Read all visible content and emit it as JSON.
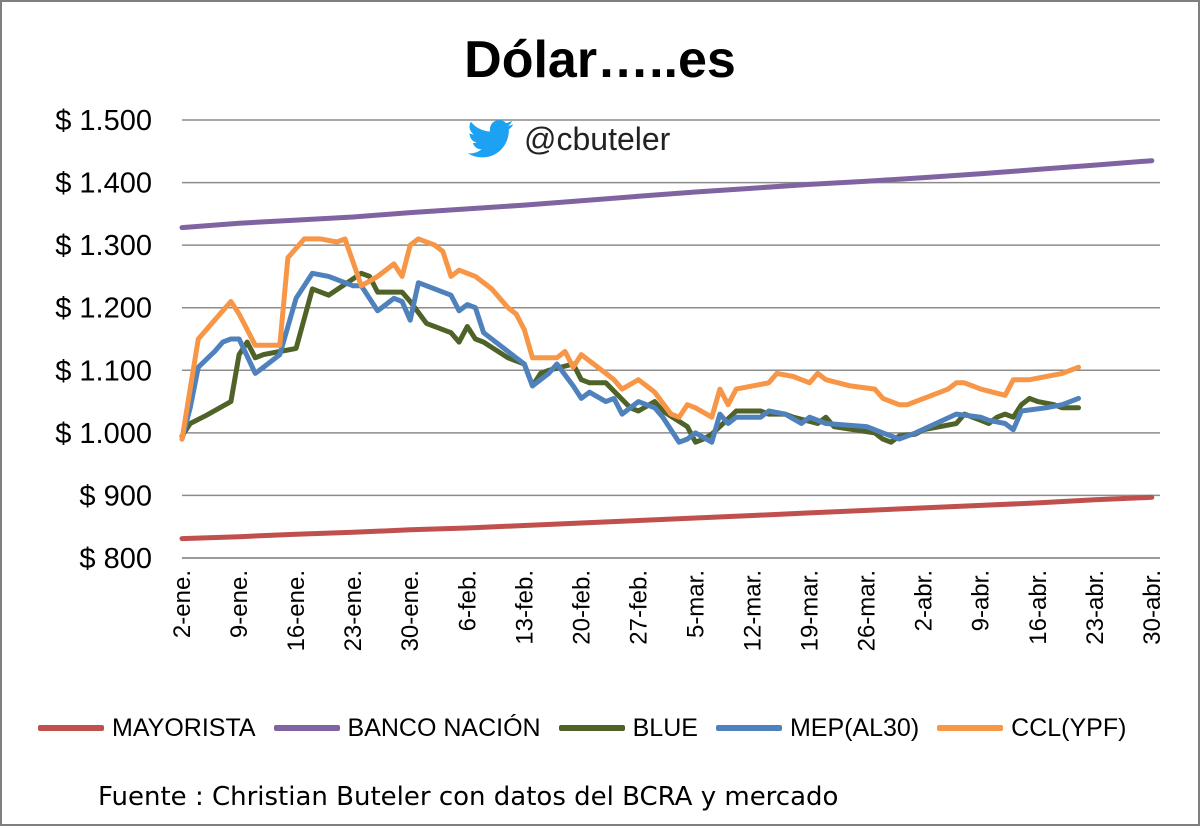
{
  "title": "Dólar…..es",
  "twitter": {
    "handle": "@cbuteler",
    "icon": "twitter-bird-icon",
    "icon_color": "#1da1f2"
  },
  "source_note": "Fuente : Christian Buteler con datos del BCRA y mercado",
  "chart_data": {
    "type": "line",
    "title": "Dólar…..es",
    "xlabel": "",
    "ylabel": "",
    "ylim": [
      800,
      1500
    ],
    "y_ticks": [
      800,
      900,
      1000,
      1100,
      1200,
      1300,
      1400,
      1500
    ],
    "y_tick_labels": [
      "$ 800",
      "$ 900",
      "$ 1.000",
      "$ 1.100",
      "$ 1.200",
      "$ 1.300",
      "$ 1.400",
      "$ 1.500"
    ],
    "x_tick_labels": [
      "2-ene.",
      "9-ene.",
      "16-ene.",
      "23-ene.",
      "30-ene.",
      "6-feb.",
      "13-feb.",
      "20-feb.",
      "27-feb.",
      "5-mar.",
      "12-mar.",
      "19-mar.",
      "26-mar.",
      "2-abr.",
      "9-abr.",
      "16-abr.",
      "23-abr.",
      "30-abr."
    ],
    "x_range_days": [
      0,
      120
    ],
    "grid": true,
    "legend_position": "bottom",
    "series": [
      {
        "name": "MAYORISTA",
        "color": "#c0504d",
        "points": [
          [
            0,
            831
          ],
          [
            7,
            834
          ],
          [
            14,
            838
          ],
          [
            21,
            841
          ],
          [
            28,
            845
          ],
          [
            35,
            848
          ],
          [
            42,
            852
          ],
          [
            49,
            856
          ],
          [
            56,
            860
          ],
          [
            63,
            864
          ],
          [
            70,
            868
          ],
          [
            77,
            872
          ],
          [
            84,
            876
          ],
          [
            91,
            880
          ],
          [
            98,
            884
          ],
          [
            105,
            888
          ],
          [
            112,
            893
          ],
          [
            119,
            897
          ]
        ]
      },
      {
        "name": "BANCO NACIÓN",
        "color": "#8064a2",
        "points": [
          [
            0,
            1328
          ],
          [
            7,
            1335
          ],
          [
            14,
            1340
          ],
          [
            21,
            1345
          ],
          [
            28,
            1352
          ],
          [
            35,
            1358
          ],
          [
            42,
            1364
          ],
          [
            49,
            1371
          ],
          [
            56,
            1378
          ],
          [
            63,
            1385
          ],
          [
            70,
            1391
          ],
          [
            77,
            1397
          ],
          [
            84,
            1402
          ],
          [
            91,
            1408
          ],
          [
            98,
            1414
          ],
          [
            105,
            1421
          ],
          [
            112,
            1428
          ],
          [
            119,
            1435
          ]
        ]
      },
      {
        "name": "BLUE",
        "color": "#4f6228",
        "points": [
          [
            0,
            995
          ],
          [
            1,
            1015
          ],
          [
            3,
            1028
          ],
          [
            6,
            1050
          ],
          [
            7,
            1125
          ],
          [
            8,
            1145
          ],
          [
            9,
            1120
          ],
          [
            10,
            1125
          ],
          [
            12,
            1130
          ],
          [
            14,
            1135
          ],
          [
            16,
            1230
          ],
          [
            18,
            1220
          ],
          [
            22,
            1255
          ],
          [
            23,
            1250
          ],
          [
            24,
            1225
          ],
          [
            27,
            1225
          ],
          [
            28,
            1210
          ],
          [
            30,
            1175
          ],
          [
            33,
            1160
          ],
          [
            34,
            1145
          ],
          [
            35,
            1170
          ],
          [
            36,
            1150
          ],
          [
            37,
            1145
          ],
          [
            40,
            1120
          ],
          [
            42,
            1110
          ],
          [
            43,
            1075
          ],
          [
            44,
            1095
          ],
          [
            45,
            1100
          ],
          [
            48,
            1110
          ],
          [
            49,
            1085
          ],
          [
            50,
            1080
          ],
          [
            52,
            1080
          ],
          [
            55,
            1040
          ],
          [
            56,
            1035
          ],
          [
            58,
            1050
          ],
          [
            59,
            1035
          ],
          [
            62,
            1010
          ],
          [
            63,
            985
          ],
          [
            64,
            990
          ],
          [
            65,
            998
          ],
          [
            66,
            1010
          ],
          [
            68,
            1035
          ],
          [
            71,
            1035
          ],
          [
            72,
            1030
          ],
          [
            74,
            1030
          ],
          [
            75,
            1025
          ],
          [
            78,
            1015
          ],
          [
            79,
            1025
          ],
          [
            80,
            1010
          ],
          [
            85,
            1000
          ],
          [
            86,
            990
          ],
          [
            87,
            985
          ],
          [
            88,
            995
          ],
          [
            90,
            998
          ],
          [
            91,
            1005
          ],
          [
            95,
            1015
          ],
          [
            96,
            1030
          ],
          [
            98,
            1020
          ],
          [
            99,
            1015
          ],
          [
            100,
            1025
          ],
          [
            101,
            1030
          ],
          [
            102,
            1025
          ],
          [
            103,
            1045
          ],
          [
            104,
            1055
          ],
          [
            105,
            1050
          ],
          [
            107,
            1045
          ],
          [
            108,
            1040
          ],
          [
            110,
            1040
          ]
        ]
      },
      {
        "name": "MEP(AL30)",
        "color": "#4f81bd",
        "points": [
          [
            0,
            990
          ],
          [
            1,
            1040
          ],
          [
            2,
            1105
          ],
          [
            4,
            1130
          ],
          [
            5,
            1145
          ],
          [
            6,
            1150
          ],
          [
            7,
            1150
          ],
          [
            9,
            1095
          ],
          [
            10,
            1105
          ],
          [
            12,
            1125
          ],
          [
            14,
            1215
          ],
          [
            16,
            1255
          ],
          [
            18,
            1250
          ],
          [
            20,
            1240
          ],
          [
            21,
            1235
          ],
          [
            22,
            1235
          ],
          [
            24,
            1195
          ],
          [
            25,
            1205
          ],
          [
            26,
            1215
          ],
          [
            27,
            1210
          ],
          [
            28,
            1180
          ],
          [
            29,
            1240
          ],
          [
            31,
            1230
          ],
          [
            33,
            1220
          ],
          [
            34,
            1195
          ],
          [
            35,
            1205
          ],
          [
            36,
            1200
          ],
          [
            37,
            1160
          ],
          [
            41,
            1120
          ],
          [
            42,
            1110
          ],
          [
            43,
            1075
          ],
          [
            45,
            1095
          ],
          [
            46,
            1110
          ],
          [
            48,
            1075
          ],
          [
            49,
            1055
          ],
          [
            50,
            1065
          ],
          [
            52,
            1050
          ],
          [
            53,
            1055
          ],
          [
            54,
            1030
          ],
          [
            56,
            1050
          ],
          [
            58,
            1040
          ],
          [
            59,
            1025
          ],
          [
            61,
            985
          ],
          [
            62,
            990
          ],
          [
            63,
            1000
          ],
          [
            65,
            985
          ],
          [
            66,
            1030
          ],
          [
            67,
            1015
          ],
          [
            68,
            1025
          ],
          [
            71,
            1025
          ],
          [
            72,
            1035
          ],
          [
            74,
            1030
          ],
          [
            76,
            1015
          ],
          [
            77,
            1025
          ],
          [
            79,
            1015
          ],
          [
            84,
            1010
          ],
          [
            86,
            1000
          ],
          [
            88,
            990
          ],
          [
            90,
            1000
          ],
          [
            95,
            1030
          ],
          [
            98,
            1025
          ],
          [
            99,
            1020
          ],
          [
            101,
            1015
          ],
          [
            102,
            1005
          ],
          [
            103,
            1035
          ],
          [
            106,
            1040
          ],
          [
            108,
            1045
          ],
          [
            110,
            1055
          ]
        ]
      },
      {
        "name": "CCL(YPF)",
        "color": "#f79646",
        "points": [
          [
            0,
            990
          ],
          [
            2,
            1150
          ],
          [
            4,
            1180
          ],
          [
            6,
            1210
          ],
          [
            7,
            1190
          ],
          [
            9,
            1140
          ],
          [
            10,
            1140
          ],
          [
            12,
            1140
          ],
          [
            13,
            1280
          ],
          [
            15,
            1310
          ],
          [
            17,
            1310
          ],
          [
            19,
            1305
          ],
          [
            20,
            1310
          ],
          [
            22,
            1235
          ],
          [
            24,
            1250
          ],
          [
            26,
            1270
          ],
          [
            27,
            1250
          ],
          [
            28,
            1300
          ],
          [
            29,
            1310
          ],
          [
            31,
            1300
          ],
          [
            32,
            1290
          ],
          [
            33,
            1250
          ],
          [
            34,
            1260
          ],
          [
            36,
            1250
          ],
          [
            38,
            1230
          ],
          [
            40,
            1200
          ],
          [
            41,
            1190
          ],
          [
            42,
            1165
          ],
          [
            43,
            1120
          ],
          [
            44,
            1120
          ],
          [
            46,
            1120
          ],
          [
            47,
            1130
          ],
          [
            48,
            1105
          ],
          [
            49,
            1125
          ],
          [
            50,
            1115
          ],
          [
            52,
            1095
          ],
          [
            53,
            1085
          ],
          [
            54,
            1070
          ],
          [
            56,
            1085
          ],
          [
            57,
            1075
          ],
          [
            58,
            1065
          ],
          [
            60,
            1030
          ],
          [
            61,
            1025
          ],
          [
            62,
            1045
          ],
          [
            63,
            1040
          ],
          [
            65,
            1025
          ],
          [
            66,
            1070
          ],
          [
            67,
            1045
          ],
          [
            68,
            1070
          ],
          [
            70,
            1075
          ],
          [
            72,
            1080
          ],
          [
            73,
            1095
          ],
          [
            75,
            1090
          ],
          [
            76,
            1085
          ],
          [
            77,
            1080
          ],
          [
            78,
            1095
          ],
          [
            79,
            1085
          ],
          [
            82,
            1075
          ],
          [
            85,
            1070
          ],
          [
            86,
            1055
          ],
          [
            88,
            1045
          ],
          [
            89,
            1045
          ],
          [
            90,
            1050
          ],
          [
            93,
            1065
          ],
          [
            94,
            1070
          ],
          [
            95,
            1080
          ],
          [
            96,
            1080
          ],
          [
            98,
            1070
          ],
          [
            101,
            1060
          ],
          [
            102,
            1085
          ],
          [
            104,
            1085
          ],
          [
            108,
            1095
          ],
          [
            110,
            1105
          ]
        ]
      }
    ]
  }
}
